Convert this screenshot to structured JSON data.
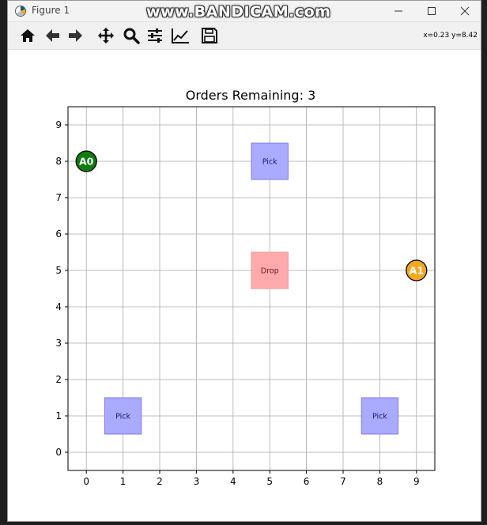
{
  "window": {
    "title": "Figure 1",
    "watermark": "www.BANDICAM.com"
  },
  "toolbar": {
    "tools": [
      "home-icon",
      "back-arrow-icon",
      "forward-arrow-icon",
      "pan-icon",
      "zoom-icon",
      "configure-subplots-icon",
      "edit-axis-icon",
      "save-icon"
    ],
    "coords": "x=0.23 y=8.42"
  },
  "chart_data": {
    "type": "scatter",
    "title": "Orders Remaining: 3",
    "xlabel": "",
    "ylabel": "",
    "xlim": [
      -0.5,
      9.5
    ],
    "ylim": [
      -0.5,
      9.5
    ],
    "x_ticks": [
      "0",
      "1",
      "2",
      "3",
      "4",
      "5",
      "6",
      "7",
      "8",
      "9"
    ],
    "y_ticks": [
      "0",
      "1",
      "2",
      "3",
      "4",
      "5",
      "6",
      "7",
      "8",
      "9"
    ],
    "grid": true,
    "stations": [
      {
        "label": "Pick",
        "x": 5,
        "y": 8,
        "kind": "pick"
      },
      {
        "label": "Drop",
        "x": 5,
        "y": 5,
        "kind": "drop"
      },
      {
        "label": "Pick",
        "x": 1,
        "y": 1,
        "kind": "pick"
      },
      {
        "label": "Pick",
        "x": 8,
        "y": 1,
        "kind": "pick"
      }
    ],
    "agents": [
      {
        "label": "A0",
        "x": 0,
        "y": 8,
        "color": "#107c10"
      },
      {
        "label": "A1",
        "x": 9,
        "y": 5,
        "color": "#f5a623"
      }
    ],
    "colors": {
      "pick_fill": "#aaaaff",
      "pick_border": "#7f7fe6",
      "drop_fill": "#ffaaaa",
      "drop_border": "#e69a9a"
    }
  }
}
